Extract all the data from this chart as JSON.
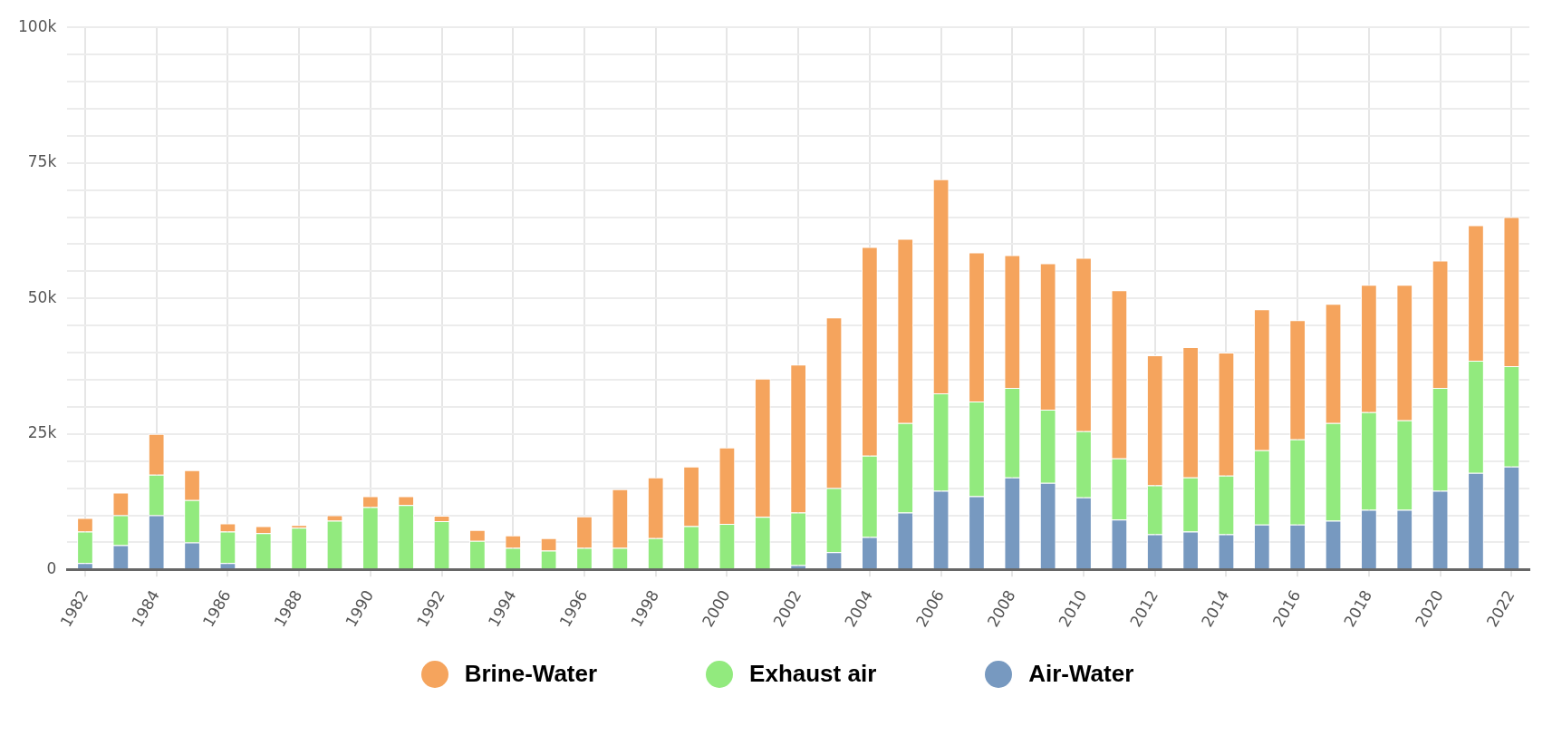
{
  "chart_data": {
    "type": "bar",
    "stacked": true,
    "grid": true,
    "legend": "bottom",
    "categories": [
      "1982",
      null,
      "1984",
      null,
      "1986",
      null,
      "1988",
      null,
      "1990",
      null,
      "1992",
      null,
      "1994",
      null,
      "1996",
      null,
      "1998",
      null,
      "2000",
      null,
      "2002",
      null,
      "2004",
      null,
      "2006",
      null,
      "2008",
      null,
      "2010",
      null,
      "2012",
      null,
      "2014",
      null,
      "2016",
      null,
      "2018",
      null,
      "2020",
      null,
      "2022"
    ],
    "ylim": [
      0,
      100000
    ],
    "yticks": [
      0,
      {
        "value": 5000,
        "label": null
      },
      {
        "value": 10000,
        "label": null
      },
      {
        "value": 15000,
        "label": null
      },
      {
        "value": 20000,
        "label": null
      },
      {
        "value": 25000,
        "label": "25k"
      },
      {
        "value": 30000,
        "label": null
      },
      {
        "value": 35000,
        "label": null
      },
      {
        "value": 40000,
        "label": null
      },
      {
        "value": 45000,
        "label": null
      },
      {
        "value": 50000,
        "label": "50k"
      },
      {
        "value": 55000,
        "label": null
      },
      {
        "value": 60000,
        "label": null
      },
      {
        "value": 65000,
        "label": null
      },
      {
        "value": 70000,
        "label": null
      },
      {
        "value": 75000,
        "label": "75k"
      },
      {
        "value": 80000,
        "label": null
      },
      {
        "value": 85000,
        "label": null
      },
      {
        "value": 90000,
        "label": null
      },
      {
        "value": 95000,
        "label": null
      },
      {
        "value": 100000,
        "label": "100k"
      }
    ],
    "series": [
      {
        "name": "Air-Water",
        "color": "#7799c0",
        "values": [
          1200,
          4500,
          10000,
          5000,
          1200,
          null,
          null,
          null,
          null,
          null,
          null,
          null,
          null,
          null,
          null,
          null,
          null,
          null,
          null,
          null,
          800,
          3200,
          6000,
          10500,
          14500,
          13500,
          17000,
          16000,
          13300,
          9200,
          6500,
          7000,
          6500,
          8300,
          8300,
          9000,
          11000,
          11000,
          14500,
          17800,
          19000
        ]
      },
      {
        "name": "Exhaust air",
        "color": "#92ea7e",
        "values": [
          5800,
          5500,
          7500,
          7800,
          5800,
          6700,
          7700,
          9000,
          11500,
          11900,
          8900,
          5300,
          4000,
          3500,
          4000,
          4000,
          5800,
          8000,
          8400,
          9700,
          9700,
          11800,
          15000,
          16500,
          18000,
          17500,
          16500,
          13500,
          12200,
          11300,
          9000,
          10000,
          10800,
          13700,
          15700,
          18000,
          18000,
          16500,
          19000,
          20700,
          18500
        ]
      },
      {
        "name": "Brine-Water",
        "color": "#f5a45d",
        "values": [
          2500,
          4200,
          7500,
          5500,
          1500,
          1300,
          500,
          1000,
          2000,
          1600,
          1000,
          2000,
          2300,
          2300,
          5800,
          10800,
          11200,
          11000,
          14100,
          25500,
          27300,
          31500,
          38500,
          34000,
          39500,
          27500,
          24500,
          27000,
          32000,
          31000,
          24000,
          24000,
          22700,
          26000,
          22000,
          22000,
          23500,
          25000,
          23500,
          25000,
          27500
        ]
      }
    ]
  }
}
